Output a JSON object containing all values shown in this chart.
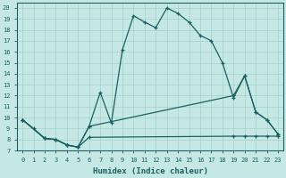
{
  "xlabel": "Humidex (Indice chaleur)",
  "xlim": [
    -0.5,
    23.5
  ],
  "ylim": [
    7,
    20.5
  ],
  "xticks": [
    0,
    1,
    2,
    3,
    4,
    5,
    6,
    7,
    8,
    9,
    10,
    11,
    12,
    13,
    14,
    15,
    16,
    17,
    18,
    19,
    20,
    21,
    22,
    23
  ],
  "yticks": [
    7,
    8,
    9,
    10,
    11,
    12,
    13,
    14,
    15,
    16,
    17,
    18,
    19,
    20
  ],
  "bg_color": "#c5e8e5",
  "line_color": "#1a6060",
  "grid_color": "#a8d4d0",
  "line1_x": [
    0,
    1,
    2,
    3,
    4,
    5,
    6,
    7,
    8,
    9,
    10,
    11,
    12,
    13,
    14,
    15,
    16,
    17,
    18,
    19,
    20,
    21,
    22,
    23
  ],
  "line1_y": [
    9.8,
    9.0,
    8.1,
    8.0,
    7.5,
    7.3,
    9.2,
    12.3,
    9.5,
    16.2,
    19.3,
    18.7,
    18.2,
    20.0,
    19.5,
    18.7,
    17.5,
    17.0,
    15.0,
    11.8,
    13.8,
    10.5,
    9.8,
    8.5
  ],
  "line2_x": [
    0,
    2,
    3,
    4,
    5,
    6,
    19,
    20,
    21,
    22,
    23
  ],
  "line2_y": [
    9.8,
    8.1,
    8.0,
    7.5,
    7.3,
    9.2,
    12.0,
    13.8,
    10.5,
    9.8,
    8.5
  ],
  "line3_x": [
    0,
    2,
    3,
    4,
    5,
    6,
    19,
    20,
    21,
    22,
    23
  ],
  "line3_y": [
    9.8,
    8.1,
    8.0,
    7.5,
    7.3,
    8.2,
    8.3,
    8.3,
    8.3,
    8.3,
    8.3
  ]
}
